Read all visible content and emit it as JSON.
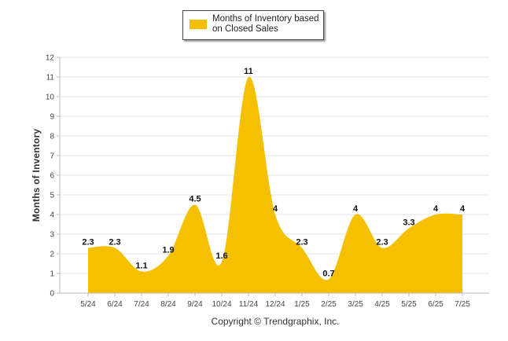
{
  "chart_data": {
    "type": "area",
    "categories": [
      "5/24",
      "6/24",
      "7/24",
      "8/24",
      "9/24",
      "10/24",
      "11/24",
      "12/24",
      "1/25",
      "2/25",
      "3/25",
      "4/25",
      "5/25",
      "6/25",
      "7/25"
    ],
    "series": [
      {
        "name": "Months of Inventory based on Closed Sales",
        "values": [
          2.3,
          2.3,
          1.1,
          1.9,
          4.5,
          1.6,
          11,
          4,
          2.3,
          0.7,
          4,
          2.3,
          3.3,
          4,
          4
        ]
      }
    ],
    "ylabel": "Months of Inventory",
    "xlabel": "",
    "ylim": [
      0,
      12
    ],
    "yticks": [
      0,
      1,
      2,
      3,
      4,
      5,
      6,
      7,
      8,
      9,
      10,
      11,
      12
    ],
    "grid": true,
    "legend": "top-center",
    "fill_color": "#f5c000",
    "grid_color": "#e6e6e6",
    "axis_color": "#bbbbbb"
  },
  "footer": "Copyright © Trendgraphix, Inc."
}
